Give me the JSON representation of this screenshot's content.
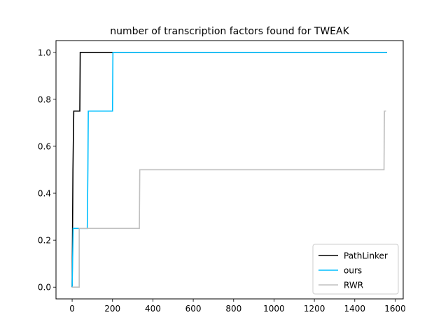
{
  "chart_data": {
    "type": "line",
    "title": "number of transcription factors found for TWEAK",
    "xlabel": "",
    "ylabel": "",
    "xlim": [
      -80,
      1640
    ],
    "ylim": [
      -0.05,
      1.05
    ],
    "xticks": [
      0,
      200,
      400,
      600,
      800,
      1000,
      1200,
      1400,
      1600
    ],
    "yticks": [
      0.0,
      0.2,
      0.4,
      0.6,
      0.8,
      1.0
    ],
    "xtick_labels": [
      "0",
      "200",
      "400",
      "600",
      "800",
      "1000",
      "1200",
      "1400",
      "1600"
    ],
    "ytick_labels": [
      "0.0",
      "0.2",
      "0.4",
      "0.6",
      "0.8",
      "1.0"
    ],
    "grid": false,
    "legend_position": "lower-right",
    "series": [
      {
        "name": "PathLinker",
        "color": "#000000",
        "points": [
          [
            0,
            0
          ],
          [
            2,
            0.25
          ],
          [
            4,
            0.5
          ],
          [
            8,
            0.75
          ],
          [
            38,
            0.75
          ],
          [
            40,
            1.0
          ],
          [
            1560,
            1.0
          ]
        ]
      },
      {
        "name": "ours",
        "color": "#00bfff",
        "points": [
          [
            0,
            0
          ],
          [
            5,
            0.25
          ],
          [
            75,
            0.25
          ],
          [
            78,
            0.5
          ],
          [
            80,
            0.75
          ],
          [
            200,
            0.75
          ],
          [
            202,
            1.0
          ],
          [
            1560,
            1.0
          ]
        ]
      },
      {
        "name": "RWR",
        "color": "#c0c0c0",
        "points": [
          [
            0,
            0
          ],
          [
            35,
            0
          ],
          [
            35,
            0.25
          ],
          [
            333,
            0.25
          ],
          [
            335,
            0.5
          ],
          [
            1545,
            0.5
          ],
          [
            1547,
            0.75
          ],
          [
            1555,
            0.75
          ]
        ]
      }
    ]
  }
}
